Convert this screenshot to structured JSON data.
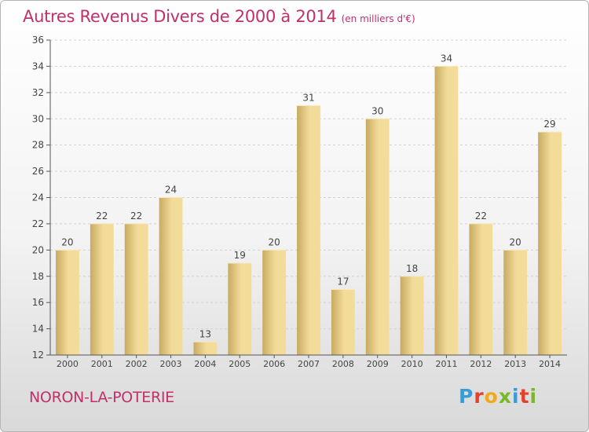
{
  "header": {
    "title": "Autres Revenus Divers de 2000 à 2014",
    "unit": "(en milliers d'€)"
  },
  "footer": {
    "commune": "NORON-LA-POTERIE",
    "logo_letters": [
      "P",
      "r",
      "o",
      "x",
      "i",
      "t",
      "i"
    ],
    "logo_colors": [
      "#3a9bd6",
      "#e2422c",
      "#f2a81d",
      "#7ab828",
      "#3a9bd6",
      "#e2422c",
      "#7ab828"
    ]
  },
  "colors": {
    "bar_light": "#f3dc9a",
    "bar_dark": "#c8ab62",
    "title": "#c0306a",
    "grid": "#d2d2d2"
  },
  "chart_data": {
    "type": "bar",
    "categories": [
      "2000",
      "2001",
      "2002",
      "2003",
      "2004",
      "2005",
      "2006",
      "2007",
      "2008",
      "2009",
      "2010",
      "2011",
      "2012",
      "2013",
      "2014"
    ],
    "values": [
      20,
      22,
      22,
      24,
      13,
      19,
      20,
      31,
      17,
      30,
      18,
      34,
      22,
      20,
      29
    ],
    "title": "Autres Revenus Divers de 2000 à 2014",
    "ylim": [
      12,
      36
    ],
    "yticks": [
      12,
      14,
      16,
      18,
      20,
      22,
      24,
      26,
      28,
      30,
      32,
      34,
      36
    ],
    "grid": "horizontal dashed",
    "legend": "none"
  }
}
